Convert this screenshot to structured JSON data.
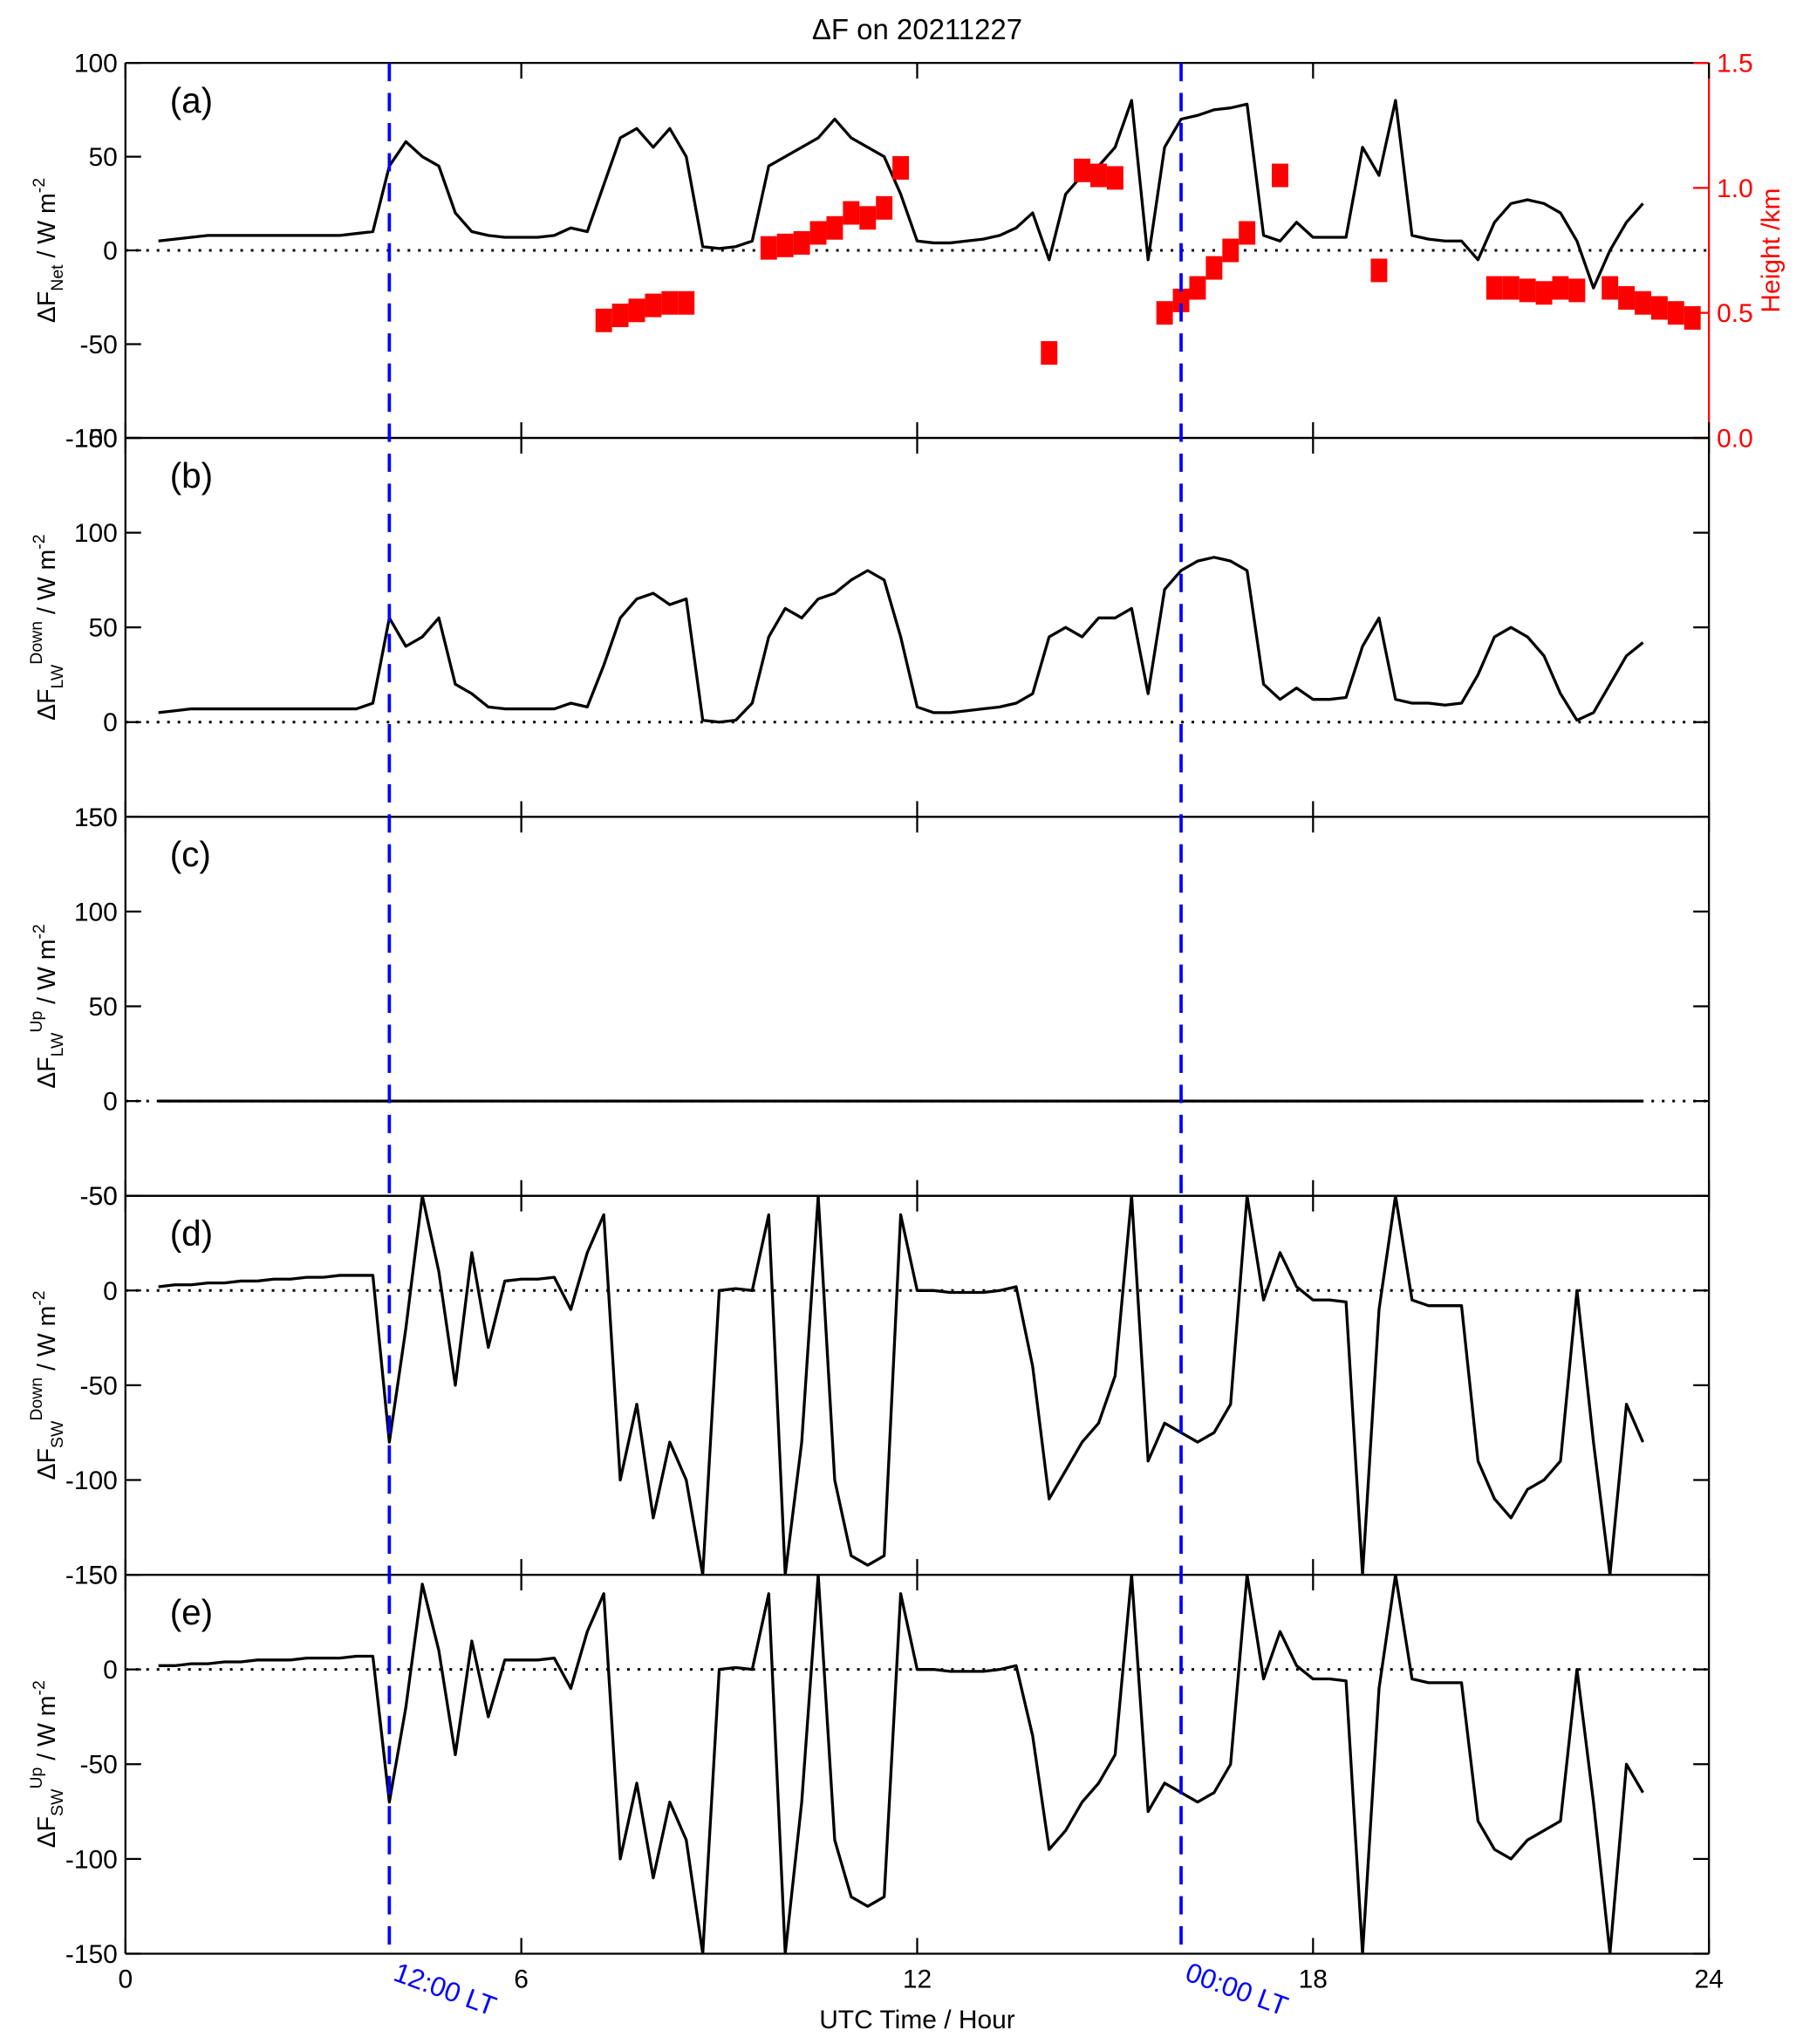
{
  "chart_data": {
    "type": "line",
    "title": "ΔF on 20211227",
    "xlabel": "UTC Time / Hour",
    "xlim": [
      0,
      24
    ],
    "xticks": [
      0,
      6,
      12,
      18,
      24
    ],
    "annotations": [
      {
        "x": 4,
        "label": "12:00 LT",
        "color": "#0000ff"
      },
      {
        "x": 16,
        "label": "00:00 LT",
        "color": "#0000ff"
      }
    ],
    "x": [
      0.5,
      0.75,
      1,
      1.25,
      1.5,
      1.75,
      2,
      2.25,
      2.5,
      2.75,
      3,
      3.25,
      3.5,
      3.75,
      4,
      4.25,
      4.5,
      4.75,
      5,
      5.25,
      5.5,
      5.75,
      6,
      6.25,
      6.5,
      6.75,
      7,
      7.25,
      7.5,
      7.75,
      8,
      8.25,
      8.5,
      8.75,
      9,
      9.25,
      9.5,
      9.75,
      10,
      10.25,
      10.5,
      10.75,
      11,
      11.25,
      11.5,
      11.75,
      12,
      12.25,
      12.5,
      12.75,
      13,
      13.25,
      13.5,
      13.75,
      14,
      14.25,
      14.5,
      14.75,
      15,
      15.25,
      15.5,
      15.75,
      16,
      16.25,
      16.5,
      16.75,
      17,
      17.25,
      17.5,
      17.75,
      18,
      18.25,
      18.5,
      18.75,
      19,
      19.25,
      19.5,
      19.75,
      20,
      20.25,
      20.5,
      20.75,
      21,
      21.25,
      21.5,
      21.75,
      22,
      22.25,
      22.5,
      22.75,
      23,
      23.25,
      23.5,
      23.75
    ],
    "panels": [
      {
        "label": "(a)",
        "ylabel": {
          "base": "ΔF",
          "sub": "Net",
          "unit": " / W m",
          "exp": "-2"
        },
        "ylim": [
          -100,
          100
        ],
        "yticks": [
          -100,
          -50,
          0,
          50,
          100
        ],
        "y2label": "Height /km",
        "y2color": "#ff0000",
        "y2lim": [
          0,
          1.5
        ],
        "y2ticks": [
          {
            "value": 0,
            "label": "0.0"
          },
          0.5,
          {
            "value": 1,
            "label": "1.0"
          },
          1.5
        ],
        "series": [
          {
            "color": "#000000",
            "values": [
              5,
              6,
              7,
              8,
              8,
              8,
              8,
              8,
              8,
              8,
              8,
              8,
              9,
              10,
              45,
              58,
              50,
              45,
              20,
              10,
              8,
              7,
              7,
              7,
              8,
              12,
              10,
              35,
              60,
              65,
              55,
              65,
              50,
              2,
              1,
              2,
              5,
              45,
              50,
              55,
              60,
              70,
              60,
              55,
              50,
              30,
              5,
              4,
              4,
              5,
              6,
              8,
              12,
              20,
              -5,
              30,
              40,
              45,
              55,
              80,
              -5,
              55,
              70,
              72,
              75,
              76,
              78,
              8,
              5,
              15,
              7,
              7,
              7,
              55,
              40,
              80,
              8,
              6,
              5,
              5,
              -5,
              15,
              25,
              27,
              25,
              20,
              5,
              -20,
              0,
              15,
              25,
              null,
              null,
              null
            ]
          },
          {
            "color": "#ff0000",
            "axis": "y2",
            "style": "markers",
            "values": [
              null,
              null,
              null,
              null,
              null,
              null,
              null,
              null,
              null,
              null,
              null,
              null,
              null,
              null,
              null,
              null,
              null,
              null,
              null,
              null,
              null,
              null,
              null,
              null,
              null,
              null,
              null,
              0.47,
              0.49,
              0.51,
              0.53,
              0.54,
              0.54,
              null,
              null,
              null,
              null,
              0.76,
              0.77,
              0.78,
              0.82,
              0.84,
              0.9,
              0.88,
              0.92,
              1.08,
              null,
              null,
              null,
              null,
              null,
              null,
              null,
              null,
              0.34,
              null,
              1.07,
              1.05,
              1.04,
              null,
              null,
              0.5,
              0.55,
              0.6,
              0.68,
              0.75,
              0.82,
              null,
              1.05,
              null,
              null,
              null,
              null,
              null,
              0.67,
              null,
              null,
              null,
              null,
              null,
              null,
              0.6,
              0.6,
              0.59,
              0.58,
              0.6,
              0.59,
              null,
              0.6,
              0.56,
              0.54,
              0.52,
              0.5,
              0.48
            ]
          }
        ]
      },
      {
        "label": "(b)",
        "ylabel": {
          "base": "ΔF",
          "sub": "LW",
          "sup": "Down",
          "unit": " / W m",
          "exp": "-2"
        },
        "ylim": [
          -50,
          150
        ],
        "yticks": [
          -50,
          0,
          50,
          100,
          150
        ],
        "series": [
          {
            "color": "#000000",
            "values": [
              5,
              6,
              7,
              7,
              7,
              7,
              7,
              7,
              7,
              7,
              7,
              7,
              7,
              10,
              55,
              40,
              45,
              55,
              20,
              15,
              8,
              7,
              7,
              7,
              7,
              10,
              8,
              30,
              55,
              65,
              68,
              62,
              65,
              1,
              0,
              1,
              10,
              45,
              60,
              55,
              65,
              68,
              75,
              80,
              75,
              45,
              8,
              5,
              5,
              6,
              7,
              8,
              10,
              15,
              45,
              50,
              45,
              55,
              55,
              60,
              15,
              70,
              80,
              85,
              87,
              85,
              80,
              20,
              12,
              18,
              12,
              12,
              13,
              40,
              55,
              12,
              10,
              10,
              9,
              10,
              25,
              45,
              50,
              45,
              35,
              15,
              1,
              5,
              20,
              35,
              42,
              null,
              null,
              null
            ]
          }
        ]
      },
      {
        "label": "(c)",
        "ylabel": {
          "base": "ΔF",
          "sub": "LW",
          "sup": "Up",
          "unit": " / W m",
          "exp": "-2"
        },
        "ylim": [
          -50,
          150
        ],
        "yticks": [
          -50,
          0,
          50,
          100,
          150
        ],
        "series": [
          {
            "color": "#000000",
            "values": [
              0,
              0,
              0,
              0,
              0,
              0,
              0,
              0,
              0,
              0,
              0,
              0,
              0,
              0,
              0,
              0,
              0,
              0,
              0,
              0,
              0,
              0,
              0,
              0,
              0,
              0,
              0,
              0,
              0,
              0,
              0,
              0,
              0,
              0,
              0,
              0,
              0,
              0,
              0,
              0,
              0,
              0,
              0,
              0,
              0,
              0,
              0,
              0,
              0,
              0,
              0,
              0,
              0,
              0,
              0,
              0,
              0,
              0,
              0,
              0,
              0,
              0,
              0,
              0,
              0,
              0,
              0,
              0,
              0,
              0,
              0,
              0,
              0,
              0,
              0,
              0,
              0,
              0,
              0,
              0,
              0,
              0,
              0,
              0,
              0,
              0,
              0,
              0,
              0,
              0,
              0,
              null,
              null,
              null
            ]
          }
        ]
      },
      {
        "label": "(d)",
        "ylabel": {
          "base": "ΔF",
          "sub": "SW",
          "sup": "Down",
          "unit": " / W m",
          "exp": "-2"
        },
        "ylim": [
          -150,
          50
        ],
        "yticks": [
          -150,
          -100,
          -50,
          0,
          50
        ],
        "series": [
          {
            "color": "#000000",
            "values": [
              2,
              3,
              3,
              4,
              4,
              5,
              5,
              6,
              6,
              7,
              7,
              8,
              8,
              8,
              -80,
              -20,
              50,
              10,
              -50,
              20,
              -30,
              5,
              6,
              6,
              7,
              -10,
              20,
              40,
              -100,
              -60,
              -120,
              -80,
              -100,
              -150,
              0,
              1,
              0,
              40,
              -150,
              -80,
              50,
              -100,
              -140,
              -145,
              -140,
              40,
              0,
              0,
              -1,
              -1,
              -1,
              0,
              2,
              -40,
              -110,
              -95,
              -80,
              -70,
              -45,
              50,
              -90,
              -70,
              -75,
              -80,
              -75,
              -60,
              50,
              -5,
              20,
              2,
              -5,
              -5,
              -6,
              -150,
              -10,
              50,
              -5,
              -8,
              -8,
              -8,
              -90,
              -110,
              -120,
              -105,
              -100,
              -90,
              0,
              -80,
              -150,
              -60,
              -80,
              null,
              null,
              null
            ]
          }
        ]
      },
      {
        "label": "(e)",
        "ylabel": {
          "base": "ΔF",
          "sub": "SW",
          "sup": "Up",
          "unit": " / W m",
          "exp": "-2"
        },
        "ylim": [
          -150,
          50
        ],
        "yticks": [
          -150,
          -100,
          -50,
          0,
          50
        ],
        "series": [
          {
            "color": "#000000",
            "values": [
              2,
              2,
              3,
              3,
              4,
              4,
              5,
              5,
              5,
              6,
              6,
              6,
              7,
              7,
              -70,
              -20,
              45,
              10,
              -45,
              15,
              -25,
              5,
              5,
              5,
              6,
              -10,
              20,
              40,
              -100,
              -60,
              -110,
              -70,
              -90,
              -150,
              0,
              1,
              0,
              40,
              -150,
              -70,
              50,
              -90,
              -120,
              -125,
              -120,
              40,
              0,
              0,
              -1,
              -1,
              -1,
              0,
              2,
              -35,
              -95,
              -85,
              -70,
              -60,
              -45,
              50,
              -75,
              -60,
              -65,
              -70,
              -65,
              -50,
              50,
              -5,
              20,
              2,
              -5,
              -5,
              -6,
              -150,
              -10,
              50,
              -5,
              -7,
              -7,
              -7,
              -80,
              -95,
              -100,
              -90,
              -85,
              -80,
              0,
              -70,
              -150,
              -50,
              -65,
              null,
              null,
              null
            ]
          }
        ]
      }
    ]
  }
}
